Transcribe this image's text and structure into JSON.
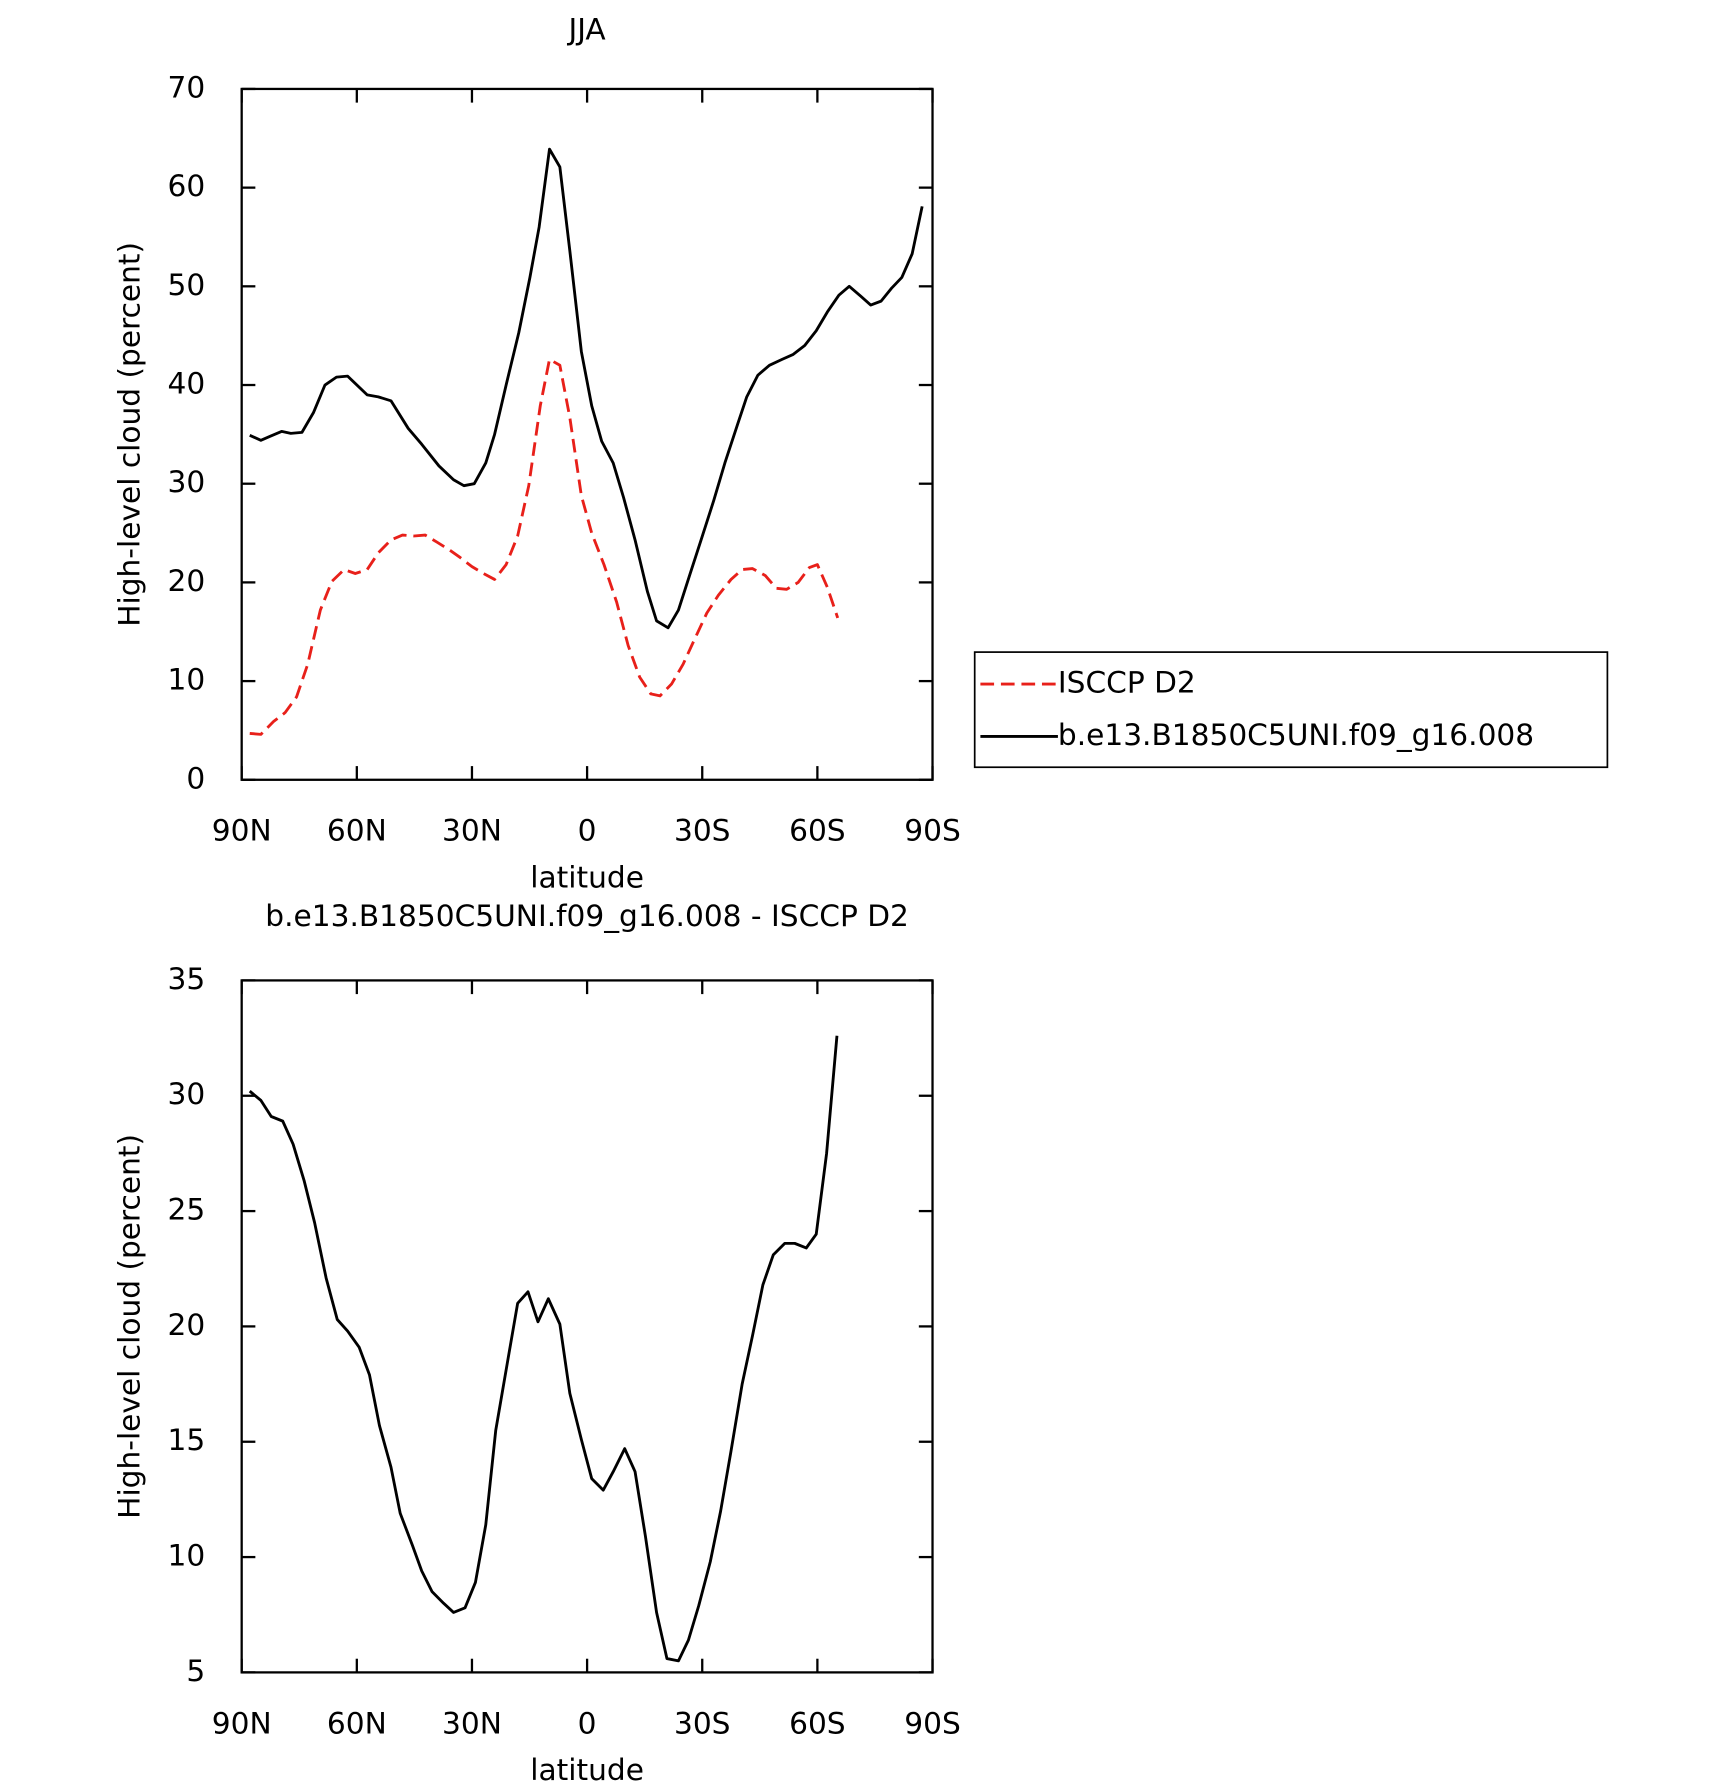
{
  "chart_data": [
    {
      "type": "line",
      "title": "JJA",
      "xlabel": "latitude",
      "ylabel": "High-level cloud (percent)",
      "xlim": [
        90,
        -90
      ],
      "xticks": [
        {
          "value": 90,
          "label": "90N"
        },
        {
          "value": 60,
          "label": "60N"
        },
        {
          "value": 30,
          "label": "30N"
        },
        0,
        {
          "value": -30,
          "label": "30S"
        },
        {
          "value": -60,
          "label": "60S"
        },
        {
          "value": -90,
          "label": "90S"
        }
      ],
      "ylim": [
        0,
        70
      ],
      "yticks": [
        0,
        10,
        20,
        30,
        40,
        50,
        60,
        70
      ],
      "legend": true,
      "series": [
        {
          "name": "ISCCP D2",
          "color": "#e8201a",
          "dash": true,
          "x": [
            87.9,
            85,
            81.7,
            78.7,
            75.7,
            72.8,
            69.5,
            66.5,
            63.3,
            60.4,
            57.3,
            54.4,
            51.1,
            48.1,
            45.1,
            42.2,
            39.2,
            35.9,
            33,
            30,
            27,
            24.1,
            21.1,
            18.1,
            15.2,
            12.2,
            9.8,
            7.1,
            4.5,
            1.5,
            -1.2,
            -4.4,
            -7.7,
            -10.7,
            -13.7,
            -16.6,
            -19,
            -22,
            -25,
            -28.2,
            -31.2,
            -34.2,
            -37.5,
            -40.4,
            -43.1,
            -46.4,
            -49.3,
            -52,
            -55,
            -57.9,
            -60,
            -62.6,
            -65.3
          ],
          "values": [
            4.7,
            4.6,
            5.9,
            6.8,
            8.4,
            11.7,
            17.2,
            20.1,
            21.3,
            20.9,
            21.3,
            23.0,
            24.3,
            24.8,
            24.7,
            24.8,
            24.1,
            23.3,
            22.5,
            21.6,
            20.9,
            20.3,
            21.8,
            24.7,
            29.8,
            37.9,
            42.6,
            42.0,
            36.7,
            28.8,
            25.0,
            21.8,
            18.0,
            13.6,
            10.4,
            8.7,
            8.5,
            9.7,
            11.7,
            14.4,
            16.9,
            18.7,
            20.3,
            21.3,
            21.4,
            20.7,
            19.4,
            19.3,
            20.0,
            21.5,
            21.8,
            19.5,
            16.4
          ]
        },
        {
          "name": "b.e13.B1850C5UNI.f09_g16.008",
          "color": "#000000",
          "dash": false,
          "x": [
            87.9,
            85,
            82.6,
            79.6,
            77.2,
            74.3,
            71.3,
            68.3,
            65.3,
            62.4,
            57.3,
            54.4,
            51.1,
            46.6,
            43.1,
            38.6,
            34.8,
            32.1,
            29.4,
            26.4,
            24.1,
            21.1,
            17.8,
            14.9,
            12.5,
            9.8,
            7.1,
            4.5,
            1.5,
            -1.2,
            -3.8,
            -6.8,
            -9.5,
            -12.5,
            -15.7,
            -18.1,
            -21.1,
            -23.8,
            -26.7,
            -29.7,
            -33,
            -35.9,
            -39.2,
            -41.6,
            -44.5,
            -47.5,
            -50.8,
            -53.7,
            -56.7,
            -59.7,
            -62.6,
            -65.6,
            -68.3,
            -71.3,
            -73.9,
            -76.6,
            -79.3,
            -82,
            -84.7,
            -87.3
          ],
          "values": [
            34.9,
            34.4,
            34.8,
            35.3,
            35.1,
            35.2,
            37.2,
            40.0,
            40.8,
            40.9,
            39.0,
            38.8,
            38.4,
            35.6,
            34.0,
            31.8,
            30.4,
            29.8,
            30.0,
            32.1,
            35.0,
            40.0,
            45.3,
            50.9,
            56.0,
            63.9,
            62.1,
            53.6,
            43.4,
            37.9,
            34.3,
            32.1,
            28.6,
            24.3,
            19.1,
            16.1,
            15.4,
            17.2,
            20.7,
            24.3,
            28.3,
            32.1,
            36.0,
            38.8,
            41.0,
            42.0,
            42.6,
            43.1,
            44.0,
            45.5,
            47.4,
            49.1,
            50.0,
            49.0,
            48.1,
            48.5,
            49.8,
            50.9,
            53.3,
            58.1
          ]
        }
      ]
    },
    {
      "type": "line",
      "title": "b.e13.B1850C5UNI.f09_g16.008 - ISCCP D2",
      "xlabel": "latitude",
      "ylabel": "High-level cloud (percent)",
      "xlim": [
        90,
        -90
      ],
      "xticks": [
        {
          "value": 90,
          "label": "90N"
        },
        {
          "value": 60,
          "label": "60N"
        },
        {
          "value": 30,
          "label": "30N"
        },
        0,
        {
          "value": -30,
          "label": "30S"
        },
        {
          "value": -60,
          "label": "60S"
        },
        {
          "value": -90,
          "label": "90S"
        }
      ],
      "ylim": [
        5,
        35
      ],
      "yticks": [
        5,
        10,
        15,
        20,
        25,
        30,
        35
      ],
      "legend": false,
      "series": [
        {
          "color": "#000000",
          "dash": false,
          "x": [
            87.9,
            85,
            82.3,
            79.3,
            76.6,
            73.7,
            71,
            68,
            65.1,
            62.4,
            59.4,
            56.7,
            54.1,
            51.1,
            48.7,
            45.5,
            43.1,
            40.4,
            37.4,
            34.8,
            31.8,
            29.1,
            26.4,
            23.8,
            20.8,
            18.1,
            15.4,
            12.8,
            10.1,
            7.1,
            4.5,
            1.5,
            -1.2,
            -4.2,
            -6.8,
            -9.8,
            -12.5,
            -15.2,
            -18.1,
            -20.8,
            -23.8,
            -26.4,
            -29.1,
            -32.1,
            -34.8,
            -37.5,
            -40.4,
            -43.1,
            -45.8,
            -48.5,
            -51.5,
            -54.1,
            -57.1,
            -59.7,
            -62.4,
            -65.1
          ],
          "values": [
            30.2,
            29.8,
            29.1,
            28.9,
            27.9,
            26.3,
            24.5,
            22.1,
            20.3,
            19.8,
            19.1,
            17.9,
            15.7,
            13.9,
            11.9,
            10.5,
            9.4,
            8.5,
            8.0,
            7.6,
            7.8,
            8.9,
            11.4,
            15.5,
            18.4,
            21.0,
            21.5,
            20.2,
            21.2,
            20.1,
            17.1,
            15.1,
            13.4,
            12.9,
            13.7,
            14.7,
            13.7,
            10.9,
            7.6,
            5.6,
            5.5,
            6.4,
            7.9,
            9.8,
            12.0,
            14.6,
            17.5,
            19.6,
            21.8,
            23.1,
            23.6,
            23.6,
            23.4,
            24.0,
            27.5,
            32.6
          ]
        }
      ]
    }
  ]
}
